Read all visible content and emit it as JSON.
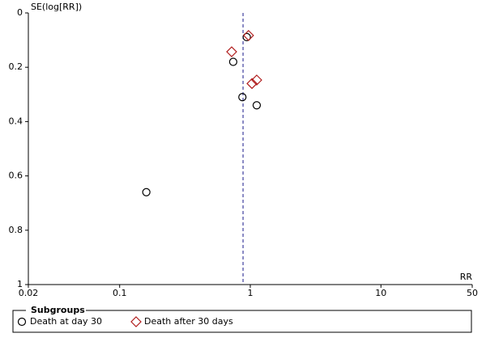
{
  "chart_data": {
    "type": "scatter",
    "y_label": "SE(log[RR])",
    "x_label": "RR",
    "x_scale": "log",
    "y_reversed": true,
    "xlim": [
      0.02,
      50
    ],
    "xticks": [
      0.02,
      0.1,
      1,
      10,
      50
    ],
    "ylim": [
      0,
      1
    ],
    "yticks": [
      0,
      0.2,
      0.4,
      0.6,
      0.8,
      1
    ],
    "reference_x": 0.88,
    "legend_title": "Subgroups",
    "series": [
      {
        "name": "Death at day 30",
        "color": "#000000",
        "marker": "circle",
        "x": [
          0.94,
          0.74,
          0.87,
          1.12,
          0.16
        ],
        "values": [
          0.089,
          0.18,
          0.31,
          0.34,
          0.66
        ]
      },
      {
        "name": "Death after 30 days",
        "color": "#b01c1c",
        "marker": "diamond",
        "x": [
          0.97,
          0.72,
          1.12,
          1.03
        ],
        "values": [
          0.083,
          0.143,
          0.247,
          0.26
        ]
      }
    ]
  }
}
